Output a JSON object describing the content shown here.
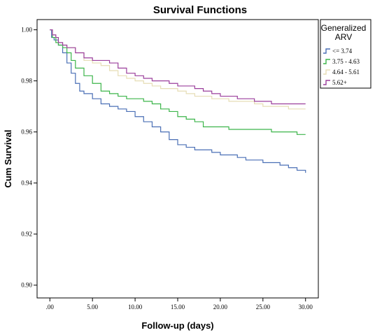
{
  "chart_data": {
    "type": "line",
    "title": "Survival Functions",
    "xlabel": "Follow-up (days)",
    "ylabel": "Cum Survival",
    "xlim": [
      -1.5,
      31.5
    ],
    "ylim": [
      0.895,
      1.004
    ],
    "x_ticks": [
      0,
      5,
      10,
      15,
      20,
      25,
      30
    ],
    "x_tick_labels": [
      ".00",
      "5.00",
      "10.00",
      "15.00",
      "20.00",
      "25.00",
      "30.00"
    ],
    "y_ticks": [
      0.9,
      0.92,
      0.94,
      0.96,
      0.98,
      1.0
    ],
    "y_tick_labels": [
      "0.90",
      "0.92",
      "0.94",
      "0.96",
      "0.98",
      "1.00"
    ],
    "grid": false,
    "legend_title": [
      "Generalized",
      "ARV"
    ],
    "legend_position": "right",
    "series": [
      {
        "name": "<= 3.74",
        "color": "#4a6fb5",
        "points": [
          [
            0,
            1.0
          ],
          [
            0.2,
            0.997
          ],
          [
            0.5,
            0.996
          ],
          [
            1,
            0.994
          ],
          [
            1.5,
            0.991
          ],
          [
            2,
            0.987
          ],
          [
            2.5,
            0.983
          ],
          [
            3,
            0.979
          ],
          [
            3.5,
            0.976
          ],
          [
            4,
            0.975
          ],
          [
            5,
            0.973
          ],
          [
            6,
            0.971
          ],
          [
            7,
            0.97
          ],
          [
            8,
            0.969
          ],
          [
            9,
            0.968
          ],
          [
            10,
            0.966
          ],
          [
            11,
            0.964
          ],
          [
            12,
            0.962
          ],
          [
            13,
            0.96
          ],
          [
            14,
            0.957
          ],
          [
            15,
            0.955
          ],
          [
            16,
            0.954
          ],
          [
            17,
            0.953
          ],
          [
            18,
            0.953
          ],
          [
            19,
            0.952
          ],
          [
            20,
            0.951
          ],
          [
            21,
            0.951
          ],
          [
            22,
            0.95
          ],
          [
            23,
            0.949
          ],
          [
            24,
            0.949
          ],
          [
            25,
            0.948
          ],
          [
            26,
            0.948
          ],
          [
            27,
            0.947
          ],
          [
            28,
            0.946
          ],
          [
            29,
            0.945
          ],
          [
            30,
            0.944
          ]
        ]
      },
      {
        "name": "3.75 - 4.63",
        "color": "#3cb54a",
        "points": [
          [
            0,
            1.0
          ],
          [
            0.3,
            0.997
          ],
          [
            0.7,
            0.995
          ],
          [
            1,
            0.994
          ],
          [
            1.5,
            0.993
          ],
          [
            2,
            0.991
          ],
          [
            2.5,
            0.988
          ],
          [
            3,
            0.985
          ],
          [
            4,
            0.982
          ],
          [
            5,
            0.979
          ],
          [
            6,
            0.976
          ],
          [
            7,
            0.975
          ],
          [
            8,
            0.974
          ],
          [
            9,
            0.973
          ],
          [
            10,
            0.973
          ],
          [
            11,
            0.972
          ],
          [
            12,
            0.971
          ],
          [
            13,
            0.969
          ],
          [
            14,
            0.968
          ],
          [
            15,
            0.966
          ],
          [
            16,
            0.965
          ],
          [
            17,
            0.964
          ],
          [
            18,
            0.962
          ],
          [
            19,
            0.962
          ],
          [
            20,
            0.962
          ],
          [
            21,
            0.961
          ],
          [
            22,
            0.961
          ],
          [
            23,
            0.961
          ],
          [
            24,
            0.961
          ],
          [
            25,
            0.961
          ],
          [
            26,
            0.96
          ],
          [
            27,
            0.96
          ],
          [
            28,
            0.96
          ],
          [
            29,
            0.959
          ],
          [
            30,
            0.959
          ]
        ]
      },
      {
        "name": "4.64 - 5.61",
        "color": "#e6ddb5",
        "points": [
          [
            0,
            1.0
          ],
          [
            0.3,
            0.998
          ],
          [
            0.7,
            0.997
          ],
          [
            1,
            0.995
          ],
          [
            1.5,
            0.994
          ],
          [
            2,
            0.993
          ],
          [
            3,
            0.991
          ],
          [
            4,
            0.988
          ],
          [
            5,
            0.987
          ],
          [
            6,
            0.986
          ],
          [
            7,
            0.984
          ],
          [
            8,
            0.982
          ],
          [
            9,
            0.981
          ],
          [
            10,
            0.98
          ],
          [
            11,
            0.979
          ],
          [
            12,
            0.978
          ],
          [
            13,
            0.977
          ],
          [
            14,
            0.977
          ],
          [
            15,
            0.976
          ],
          [
            16,
            0.975
          ],
          [
            17,
            0.974
          ],
          [
            18,
            0.974
          ],
          [
            19,
            0.973
          ],
          [
            20,
            0.973
          ],
          [
            21,
            0.972
          ],
          [
            22,
            0.972
          ],
          [
            23,
            0.972
          ],
          [
            24,
            0.971
          ],
          [
            25,
            0.97
          ],
          [
            26,
            0.97
          ],
          [
            27,
            0.97
          ],
          [
            28,
            0.969
          ],
          [
            29,
            0.969
          ],
          [
            30,
            0.969
          ]
        ]
      },
      {
        "name": "5.62+",
        "color": "#9b3f9c",
        "points": [
          [
            0,
            1.0
          ],
          [
            0.3,
            0.998
          ],
          [
            0.7,
            0.997
          ],
          [
            1,
            0.995
          ],
          [
            1.5,
            0.994
          ],
          [
            2,
            0.993
          ],
          [
            3,
            0.991
          ],
          [
            4,
            0.989
          ],
          [
            5,
            0.988
          ],
          [
            6,
            0.988
          ],
          [
            7,
            0.987
          ],
          [
            8,
            0.985
          ],
          [
            9,
            0.983
          ],
          [
            10,
            0.982
          ],
          [
            11,
            0.981
          ],
          [
            12,
            0.98
          ],
          [
            13,
            0.98
          ],
          [
            14,
            0.979
          ],
          [
            15,
            0.978
          ],
          [
            16,
            0.978
          ],
          [
            17,
            0.977
          ],
          [
            18,
            0.976
          ],
          [
            19,
            0.975
          ],
          [
            20,
            0.974
          ],
          [
            21,
            0.974
          ],
          [
            22,
            0.973
          ],
          [
            23,
            0.973
          ],
          [
            24,
            0.972
          ],
          [
            25,
            0.972
          ],
          [
            26,
            0.971
          ],
          [
            27,
            0.971
          ],
          [
            28,
            0.971
          ],
          [
            29,
            0.971
          ],
          [
            30,
            0.971
          ]
        ]
      }
    ]
  }
}
